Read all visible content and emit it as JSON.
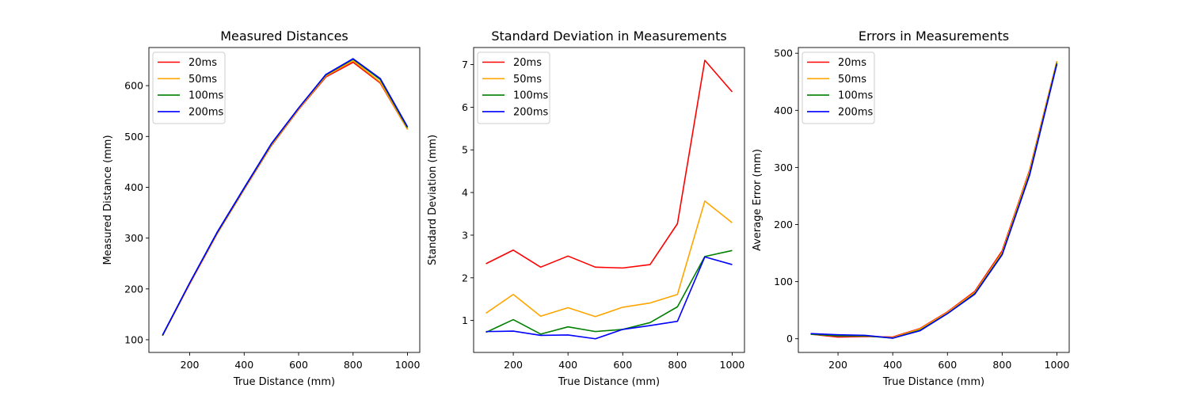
{
  "chart_data": [
    {
      "type": "line",
      "title": "Measured Distances",
      "xlabel": "True Distance (mm)",
      "ylabel": "Measured Distance (mm)",
      "x": [
        100,
        200,
        300,
        400,
        500,
        600,
        700,
        800,
        900,
        1000
      ],
      "xlim": [
        50,
        1045
      ],
      "ylim": [
        75,
        675
      ],
      "xticks": [
        200,
        400,
        600,
        800,
        1000
      ],
      "yticks": [
        100,
        200,
        300,
        400,
        500,
        600
      ],
      "legend": "upper-left",
      "series": [
        {
          "name": "20ms",
          "color": "#ff0000",
          "values": [
            108,
            210,
            308,
            396,
            482,
            553,
            617,
            646,
            605,
            514
          ]
        },
        {
          "name": "50ms",
          "color": "#ffa500",
          "values": [
            108,
            211,
            309,
            397,
            483,
            554,
            619,
            649,
            607,
            514
          ]
        },
        {
          "name": "100ms",
          "color": "#008000",
          "values": [
            108,
            212,
            310,
            398,
            485,
            556,
            621,
            652,
            612,
            517
          ]
        },
        {
          "name": "200ms",
          "color": "#0000ff",
          "values": [
            109,
            212,
            311,
            399,
            486,
            556,
            622,
            653,
            614,
            519
          ]
        }
      ]
    },
    {
      "type": "line",
      "title": "Standard Deviation in Measurements",
      "xlabel": "True Distance (mm)",
      "ylabel": "Standard Deviation (mm)",
      "x": [
        100,
        200,
        300,
        400,
        500,
        600,
        700,
        800,
        900,
        1000
      ],
      "xlim": [
        55,
        1045
      ],
      "ylim": [
        0.25,
        7.4
      ],
      "xticks": [
        200,
        400,
        600,
        800,
        1000
      ],
      "yticks": [
        1,
        2,
        3,
        4,
        5,
        6,
        7
      ],
      "legend": "upper-left",
      "series": [
        {
          "name": "20ms",
          "color": "#ff0000",
          "values": [
            2.33,
            2.65,
            2.25,
            2.51,
            2.25,
            2.23,
            2.31,
            3.27,
            7.1,
            6.36
          ]
        },
        {
          "name": "50ms",
          "color": "#ffa500",
          "values": [
            1.17,
            1.61,
            1.1,
            1.3,
            1.09,
            1.31,
            1.41,
            1.61,
            3.8,
            3.29
          ]
        },
        {
          "name": "100ms",
          "color": "#008000",
          "values": [
            0.72,
            1.02,
            0.68,
            0.85,
            0.74,
            0.79,
            0.95,
            1.32,
            2.5,
            2.64
          ]
        },
        {
          "name": "200ms",
          "color": "#0000ff",
          "values": [
            0.74,
            0.75,
            0.65,
            0.66,
            0.57,
            0.79,
            0.88,
            0.98,
            2.49,
            2.31
          ]
        }
      ]
    },
    {
      "type": "line",
      "title": "Errors in Measurements",
      "xlabel": "True Distance (mm)",
      "ylabel": "Average Error (mm)",
      "x": [
        100,
        200,
        300,
        400,
        500,
        600,
        700,
        800,
        900,
        1000
      ],
      "xlim": [
        55,
        1045
      ],
      "ylim": [
        -24,
        510
      ],
      "xticks": [
        200,
        400,
        600,
        800,
        1000
      ],
      "yticks": [
        0,
        100,
        200,
        300,
        400,
        500
      ],
      "legend": "upper-left",
      "series": [
        {
          "name": "20ms",
          "color": "#ff0000",
          "values": [
            8,
            3,
            4,
            3,
            18,
            47,
            83,
            154,
            295,
            486
          ]
        },
        {
          "name": "50ms",
          "color": "#ffa500",
          "values": [
            8,
            5,
            5,
            2,
            17,
            46,
            81,
            151,
            293,
            486
          ]
        },
        {
          "name": "100ms",
          "color": "#008000",
          "values": [
            8,
            5,
            5,
            1,
            15,
            44,
            79,
            148,
            288,
            483
          ]
        },
        {
          "name": "200ms",
          "color": "#0000ff",
          "values": [
            9,
            7,
            6,
            1,
            14,
            44,
            78,
            147,
            286,
            481
          ]
        }
      ]
    }
  ]
}
